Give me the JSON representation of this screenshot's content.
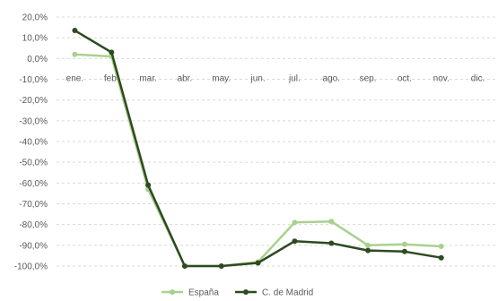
{
  "chart_data": {
    "type": "line",
    "categories": [
      "ene.",
      "feb.",
      "mar.",
      "abr.",
      "may.",
      "jun.",
      "jul.",
      "ago.",
      "sep.",
      "oct.",
      "nov.",
      "dic."
    ],
    "series": [
      {
        "name": "España",
        "color": "#a9d18e",
        "values": [
          2,
          1,
          -63,
          -100,
          -100,
          -98,
          -79,
          -78.5,
          -90,
          -89.5,
          -90.5,
          null
        ]
      },
      {
        "name": "C. de Madrid",
        "color": "#2e4a20",
        "values": [
          13.5,
          3,
          -61,
          -100,
          -100,
          -98.5,
          -88,
          -89,
          -92.5,
          -93,
          -96,
          null
        ]
      }
    ],
    "y_ticks": [
      "20,0%",
      "10,0%",
      "0,0%",
      "-10,0%",
      "-20,0%",
      "-30,0%",
      "-40,0%",
      "-50,0%",
      "-60,0%",
      "-70,0%",
      "-80,0%",
      "-90,0%",
      "-100,0%"
    ],
    "ylim": [
      -100,
      20
    ],
    "grid": true,
    "legend_position": "bottom",
    "title": "",
    "xlabel": "",
    "ylabel": ""
  }
}
